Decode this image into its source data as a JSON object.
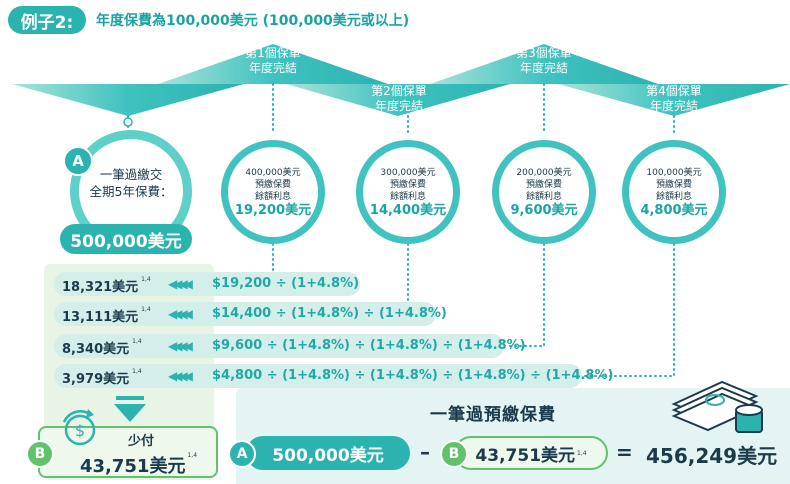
{
  "header": {
    "example_label": "例子2:",
    "description": "年度保費為100,000美元 (100,000美元或以上)"
  },
  "triangles": [
    {
      "line1": "第1個保單",
      "line2": "年度完結"
    },
    {
      "line1": "第2個保單",
      "line2": "年度完結"
    },
    {
      "line1": "第3個保單",
      "line2": "年度完結"
    },
    {
      "line1": "第4個保單",
      "line2": "年度完結"
    }
  ],
  "single_payment": {
    "badge": "A",
    "line1": "一筆過繳交",
    "line2": "全期5年保費：",
    "amount": "500,000美元"
  },
  "circles": [
    {
      "line1": "400,000美元",
      "line2": "預繳保費",
      "line3": "餘額利息",
      "amount": "19,200美元"
    },
    {
      "line1": "300,000美元",
      "line2": "預繳保費",
      "line3": "餘額利息",
      "amount": "14,400美元"
    },
    {
      "line1": "200,000美元",
      "line2": "預繳保費",
      "line3": "餘額利息",
      "amount": "9,600美元"
    },
    {
      "line1": "100,000美元",
      "line2": "預繳保費",
      "line3": "餘額利息",
      "amount": "4,800美元"
    }
  ],
  "rows": [
    {
      "value": "18,321美元",
      "note": "1,4",
      "formula": "$19,200 ÷ (1+4.8%)"
    },
    {
      "value": "13,111美元",
      "note": "1,4",
      "formula": "$14,400 ÷ (1+4.8%) ÷ (1+4.8%)"
    },
    {
      "value": "8,340美元",
      "note": "1,4",
      "formula": "$9,600 ÷ (1+4.8%) ÷ (1+4.8%) ÷ (1+4.8%)"
    },
    {
      "value": "3,979美元",
      "note": "1,4",
      "formula": "$4,800 ÷ (1+4.8%) ÷ (1+4.8%) ÷ (1+4.8%) ÷ (1+4.8%)"
    }
  ],
  "discount": {
    "badge": "B",
    "label": "少付",
    "amount": "43,751美元",
    "note": "1,4"
  },
  "prepayment": {
    "title": "一筆過預繳保費",
    "a_badge": "A",
    "a_amount": "500,000美元",
    "minus": "–",
    "b_badge": "B",
    "b_amount": "43,751美元",
    "b_note": "1,4",
    "equals": "=",
    "result": "456,249美元"
  },
  "colors": {
    "teal": "#2bb3b0",
    "light_teal": "#d4eee9",
    "green": "#62c26b",
    "light_green": "#e7f4e6"
  }
}
